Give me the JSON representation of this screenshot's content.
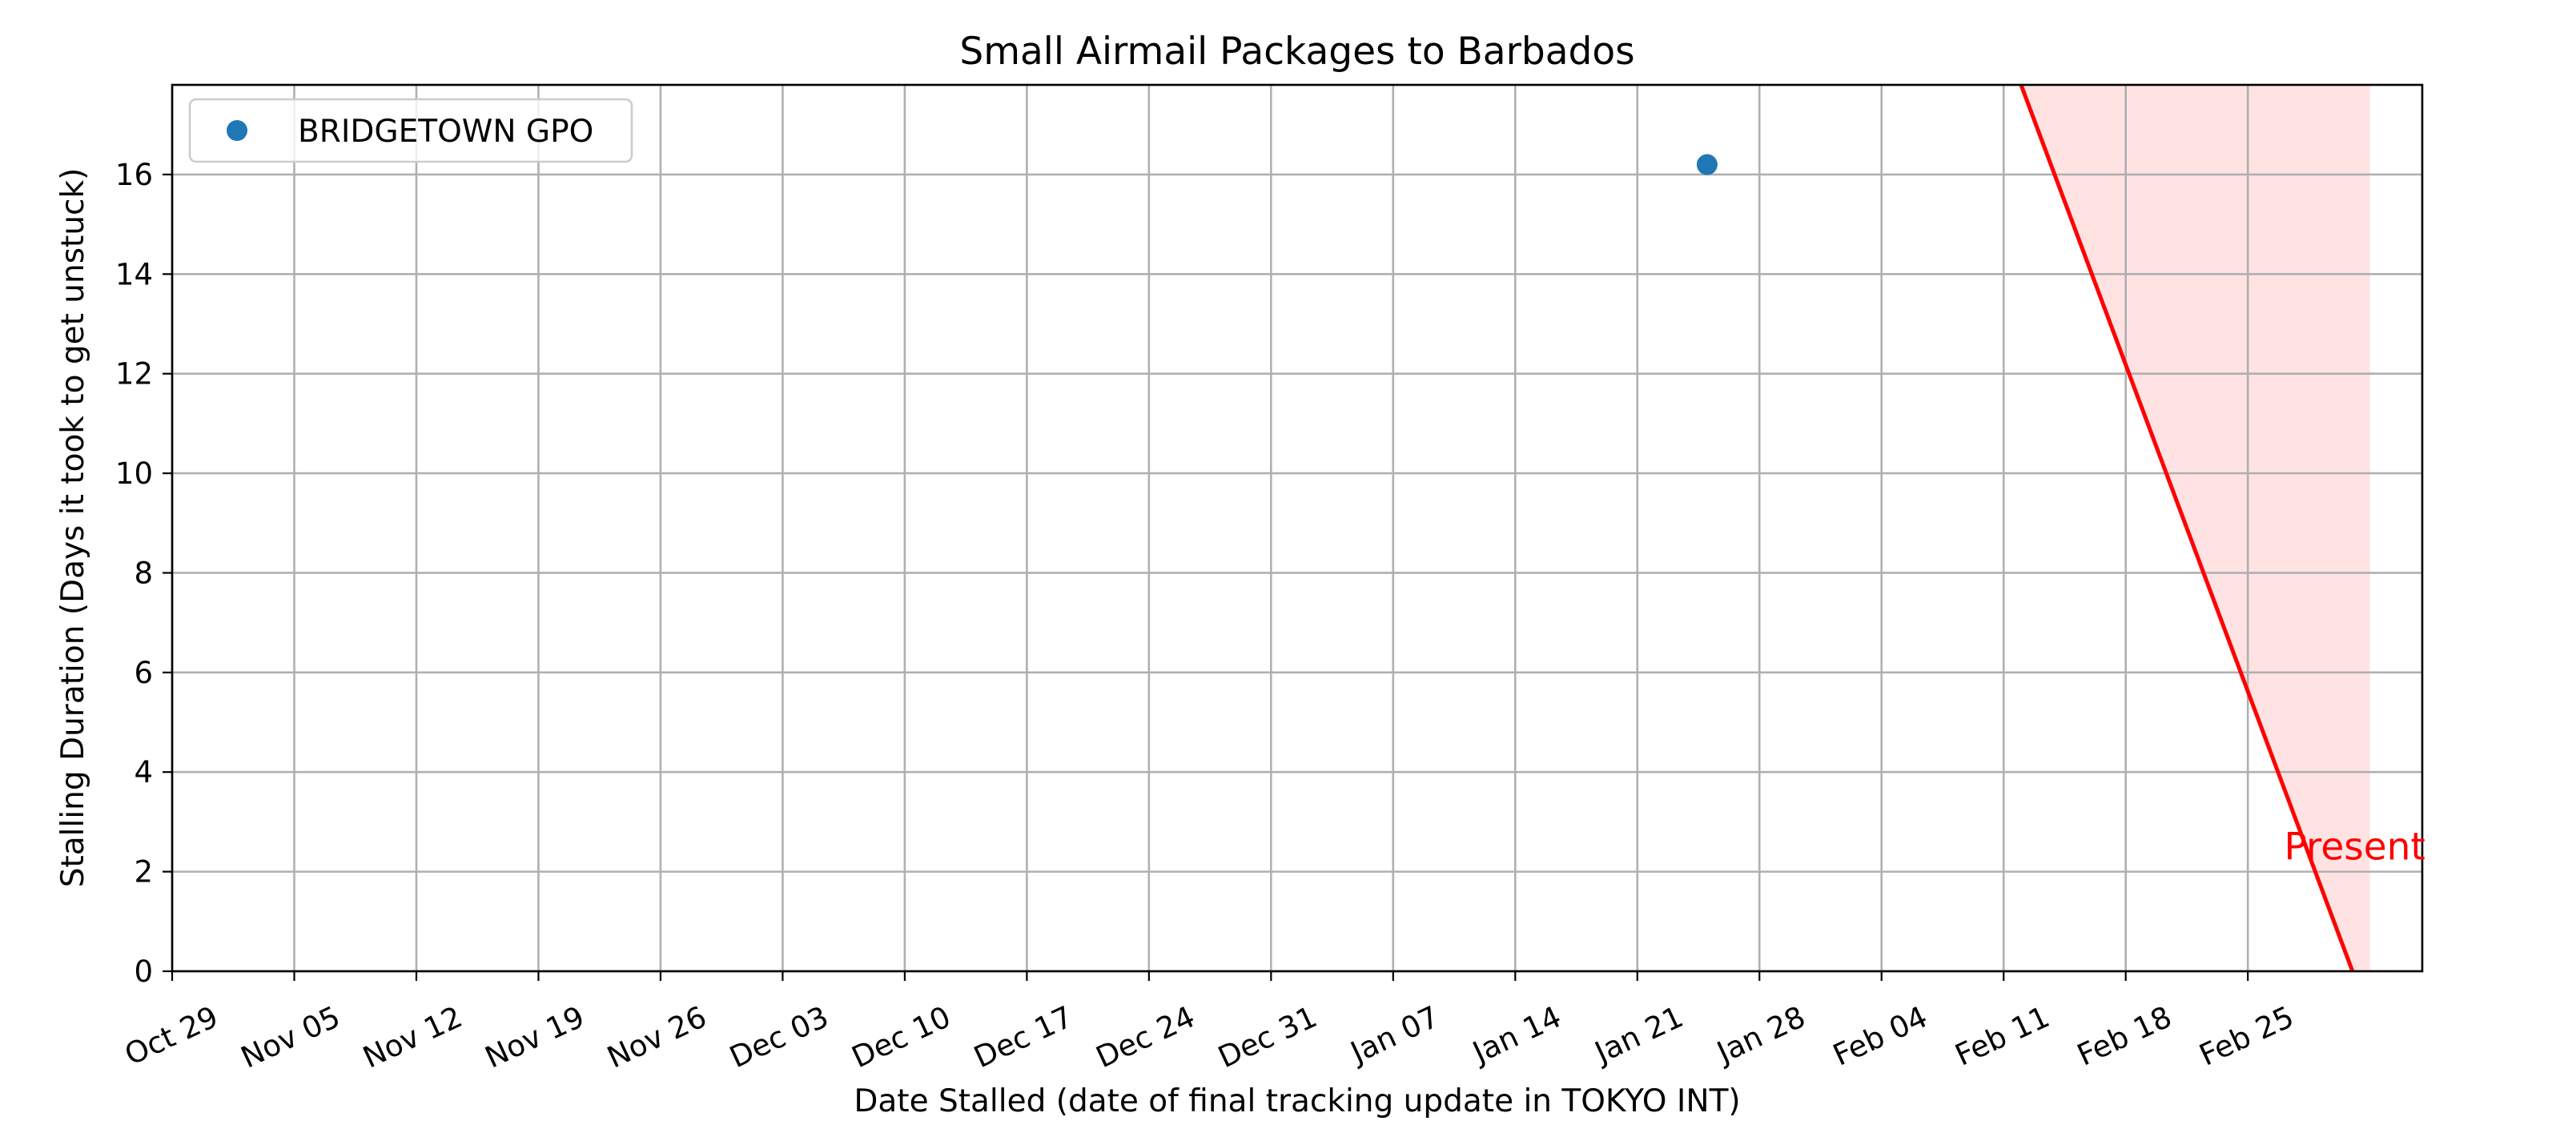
{
  "chart_data": {
    "type": "scatter",
    "title": "Small Airmail Packages to Barbados",
    "xlabel": "Date Stalled (date of final tracking update in TOKYO INT)",
    "ylabel": "Stalling Duration (Days it took to get unstuck)",
    "x_axis": {
      "type": "date",
      "range": [
        "2023-10-29",
        "2024-03-06"
      ],
      "ticks": [
        "2023-10-29",
        "2023-11-05",
        "2023-11-12",
        "2023-11-19",
        "2023-11-26",
        "2023-12-03",
        "2023-12-10",
        "2023-12-17",
        "2023-12-24",
        "2023-12-31",
        "2024-01-07",
        "2024-01-14",
        "2024-01-21",
        "2024-01-28",
        "2024-02-04",
        "2024-02-11",
        "2024-02-18",
        "2024-02-25"
      ],
      "tick_labels": [
        "Oct 29",
        "Nov 05",
        "Nov 12",
        "Nov 19",
        "Nov 26",
        "Dec 03",
        "Dec 10",
        "Dec 17",
        "Dec 24",
        "Dec 31",
        "Jan 07",
        "Jan 14",
        "Jan 21",
        "Jan 28",
        "Feb 04",
        "Feb 11",
        "Feb 18",
        "Feb 25"
      ]
    },
    "y_axis": {
      "range": [
        0,
        17.8
      ],
      "ticks": [
        0,
        2,
        4,
        6,
        8,
        10,
        12,
        14,
        16
      ],
      "tick_labels": [
        "0",
        "2",
        "4",
        "6",
        "8",
        "10",
        "12",
        "14",
        "16"
      ]
    },
    "grid": true,
    "legend_position": "top-left",
    "series": [
      {
        "name": "BRIDGETOWN GPO",
        "color": "#1f77b4",
        "points": [
          {
            "x": "2024-01-25",
            "y": 16.2
          }
        ]
      }
    ],
    "present_region": {
      "label": "Present",
      "color": "#ff0000",
      "fill_color": "#ffcccc",
      "line": [
        {
          "x": "2024-02-12",
          "y": 17.8
        },
        {
          "x": "2024-03-02",
          "y": 0
        }
      ],
      "shade_right_edge": "2024-03-03",
      "label_anchor": {
        "x": "2024-02-28",
        "y": 2.5
      }
    }
  }
}
